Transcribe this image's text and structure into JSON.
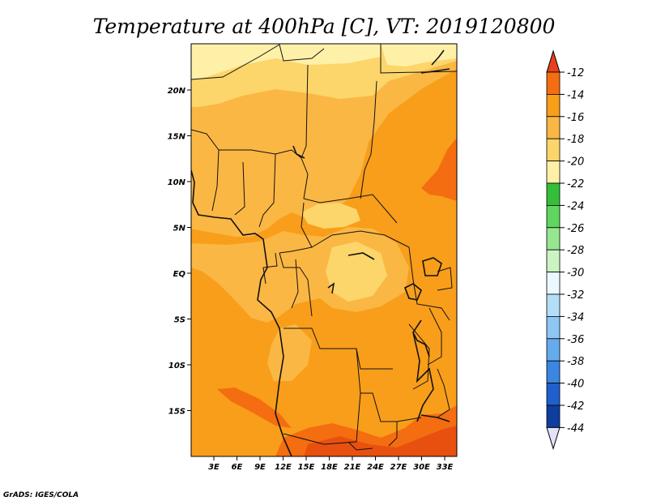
{
  "title": "Temperature at 400hPa [C], VT: 2019120800",
  "credit": "GrADS: IGES/COLA",
  "map": {
    "x_ticks": [
      "3E",
      "6E",
      "9E",
      "12E",
      "15E",
      "18E",
      "21E",
      "24E",
      "27E",
      "30E",
      "33E"
    ],
    "y_ticks": [
      "20N",
      "15N",
      "10N",
      "5N",
      "EQ",
      "5S",
      "10S",
      "15S"
    ],
    "field_colors": {
      "cold": "#fff0a8",
      "cool": "#fcd66b",
      "mid": "#fbb744",
      "warm": "#f89e1a",
      "hot": "#f46d10",
      "hottest": "#e85010"
    }
  },
  "colorbar": {
    "labels": [
      "-12",
      "-14",
      "-16",
      "-18",
      "-20",
      "-22",
      "-24",
      "-26",
      "-28",
      "-30",
      "-32",
      "-34",
      "-36",
      "-38",
      "-40",
      "-42",
      "-44"
    ],
    "colors": [
      "#f46d10",
      "#f89e1a",
      "#fbb744",
      "#fcd66b",
      "#fff0a8",
      "#35be3a",
      "#5fd65f",
      "#96e690",
      "#cbf4c3",
      "#eaf9ff",
      "#b4def8",
      "#8ec7f4",
      "#66abec",
      "#3b86e0",
      "#1f60cc",
      "#0f3e9e"
    ],
    "top_arrow_color": "#e8401a",
    "bottom_arrow_color": "#e2e2f8"
  }
}
